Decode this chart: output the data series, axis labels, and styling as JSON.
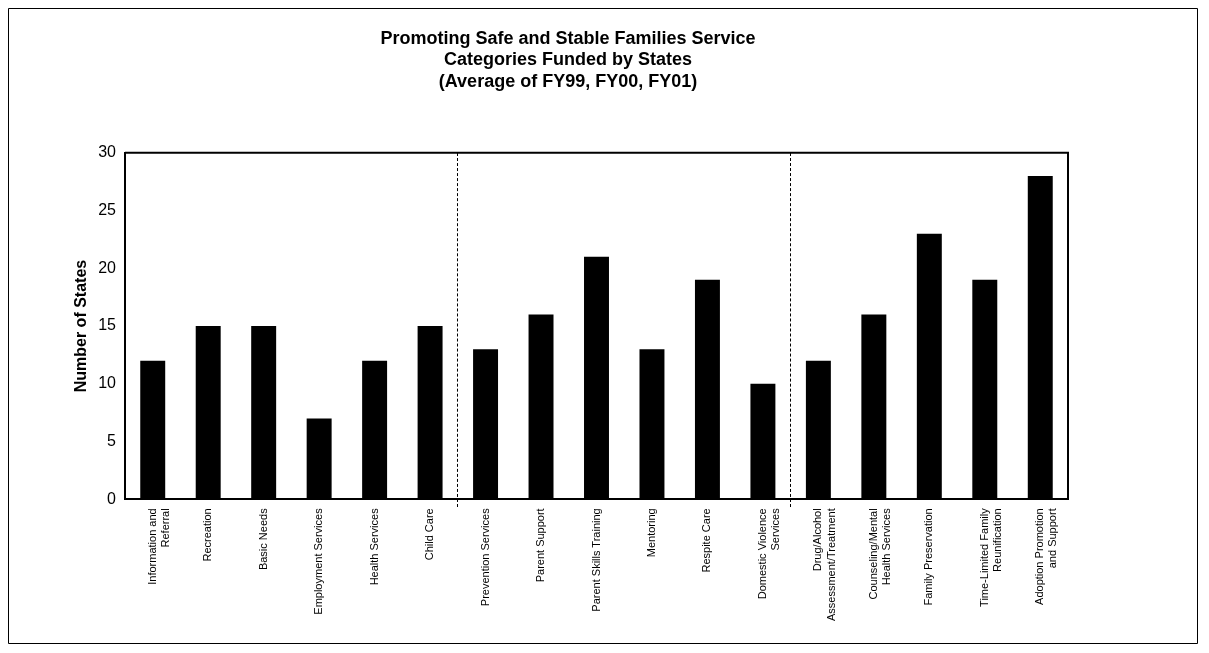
{
  "chart_data": {
    "type": "bar",
    "title": "Promoting Safe and Stable Families Service\nCategories Funded by States\n(Average of FY99, FY00, FY01)",
    "ylabel": "Number of States",
    "categories": [
      "Information and\nReferral",
      "Recreation",
      "Basic Needs",
      "Employment Services",
      "Health Services",
      "Child Care",
      "Prevention Services",
      "Parent Support",
      "Parent Skills Training",
      "Mentoring",
      "Respite Care",
      "Domestic Violence\nServices",
      "Drug/Alcohol\nAssessment/Treatment",
      "Counseling/Mental\nHealth Services",
      "Family Preservation",
      "Time-Limited Family\nReunification",
      "Adoption Promotion\nand Support"
    ],
    "values": [
      12,
      15,
      15,
      7,
      12,
      15,
      13,
      16,
      21,
      13,
      19,
      10,
      12,
      16,
      23,
      19,
      28
    ],
    "color": "#000000",
    "ylim": [
      0,
      30
    ],
    "yticks": [
      0,
      5,
      10,
      15,
      20,
      25,
      30
    ],
    "grid": false,
    "legend": false
  }
}
